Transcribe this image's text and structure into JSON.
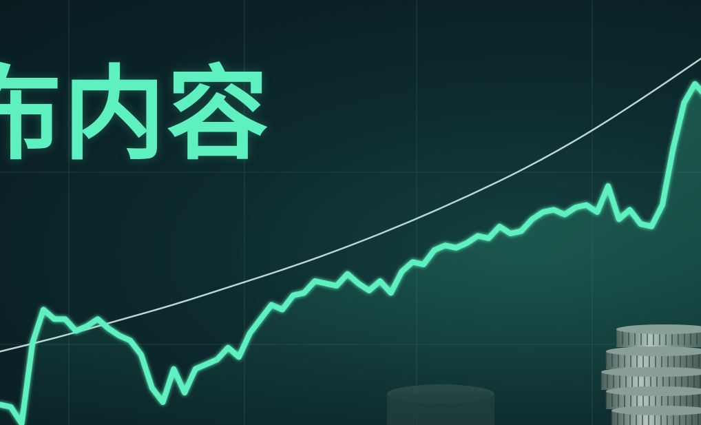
{
  "headline": {
    "text": "布内容"
  },
  "colors": {
    "background": "#0b2227",
    "accent": "#5ef0bf",
    "trend_line": "#cfe9e2",
    "grid": "#2f5a58",
    "coins": "#8f9b97"
  },
  "chart_data": {
    "type": "line",
    "title": "",
    "xlabel": "",
    "ylabel": "",
    "grid": true,
    "legend": "none",
    "series": [
      {
        "values": [
          0.08,
          0.07,
          0.0,
          0.34,
          0.48,
          0.44,
          0.44,
          0.39,
          0.41,
          0.44,
          0.4,
          0.37,
          0.35,
          0.29,
          0.15,
          0.09,
          0.23,
          0.13,
          0.23,
          0.25,
          0.27,
          0.32,
          0.28,
          0.38,
          0.44,
          0.5,
          0.48,
          0.54,
          0.55,
          0.6,
          0.59,
          0.58,
          0.63,
          0.59,
          0.56,
          0.6,
          0.55,
          0.64,
          0.68,
          0.67,
          0.73,
          0.75,
          0.74,
          0.76,
          0.79,
          0.78,
          0.83,
          0.8,
          0.81,
          0.86,
          0.89,
          0.9,
          0.88,
          0.91,
          0.92,
          0.89,
          1.0,
          0.86,
          0.9,
          0.84,
          0.83,
          0.92,
          1.16,
          1.35,
          1.43,
          1.38
        ]
      },
      {
        "values": [
          0.3,
          0.36,
          0.43,
          0.5,
          0.58,
          0.66,
          0.75,
          0.85,
          0.96,
          1.08,
          1.22,
          1.38,
          1.55
        ]
      }
    ]
  }
}
